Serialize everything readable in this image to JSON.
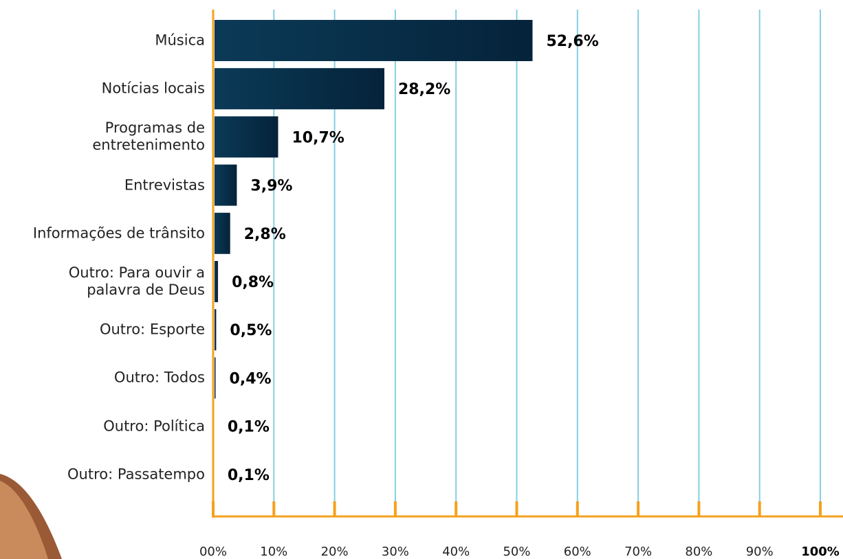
{
  "chart_data": {
    "type": "hbar",
    "categories": [
      "Música",
      "Notícias locais",
      "Programas de\nentretenimento",
      "Entrevistas",
      "Informações de trânsito",
      "Outro: Para ouvir a\npalavra de Deus",
      "Outro: Esporte",
      "Outro: Todos",
      "Outro: Política",
      "Outro: Passatempo"
    ],
    "values": [
      52.6,
      28.2,
      10.7,
      3.9,
      2.8,
      0.8,
      0.5,
      0.4,
      0.1,
      0.1
    ],
    "value_labels": [
      "52,6%",
      "28,2%",
      "10,7%",
      "3,9%",
      "2,8%",
      "0,8%",
      "0,5%",
      "0,4%",
      "0,1%",
      "0,1%"
    ],
    "color": "#0b3a57",
    "xlim": [
      0,
      100
    ],
    "xticks": [
      {
        "value": 0,
        "label": "00%"
      },
      {
        "value": 10,
        "label": "10%"
      },
      {
        "value": 20,
        "label": "20%"
      },
      {
        "value": 30,
        "label": "30%"
      },
      {
        "value": 40,
        "label": "40%"
      },
      {
        "value": 50,
        "label": "50%"
      },
      {
        "value": 60,
        "label": "60%"
      },
      {
        "value": 70,
        "label": "70%"
      },
      {
        "value": 80,
        "label": "80%"
      },
      {
        "value": 90,
        "label": "90%"
      },
      {
        "value": 100,
        "label": "100%"
      }
    ],
    "grid": true,
    "grid_color": "#86cfe0",
    "axis_color": "#f5a11c"
  }
}
